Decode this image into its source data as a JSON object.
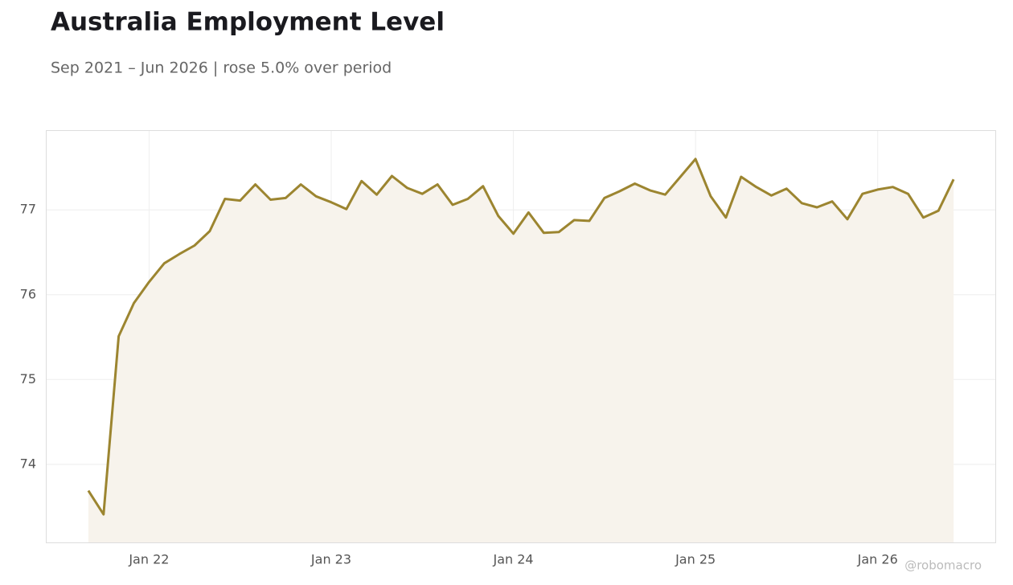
{
  "chart_data": {
    "type": "line",
    "title": "Australia Employment Level",
    "subtitle": "Sep 2021 – Jun 2026 | rose 5.0% over period",
    "watermark": "@robomacro",
    "x": [
      "2021-09",
      "2021-10",
      "2021-11",
      "2021-12",
      "2022-01",
      "2022-02",
      "2022-03",
      "2022-04",
      "2022-05",
      "2022-06",
      "2022-07",
      "2022-08",
      "2022-09",
      "2022-10",
      "2022-11",
      "2022-12",
      "2023-01",
      "2023-02",
      "2023-03",
      "2023-04",
      "2023-05",
      "2023-06",
      "2023-07",
      "2023-08",
      "2023-09",
      "2023-10",
      "2023-11",
      "2023-12",
      "2024-01",
      "2024-02",
      "2024-03",
      "2024-04",
      "2024-05",
      "2024-06",
      "2024-07",
      "2024-08",
      "2024-09",
      "2024-10",
      "2024-11",
      "2024-12",
      "2025-01",
      "2025-02",
      "2025-03",
      "2025-04",
      "2025-05",
      "2025-06",
      "2025-07",
      "2025-08",
      "2025-09",
      "2025-10",
      "2025-11",
      "2025-12",
      "2026-01",
      "2026-02",
      "2026-03",
      "2026-04",
      "2026-05",
      "2026-06"
    ],
    "series": [
      {
        "color": "#9c8530",
        "values": [
          73.69,
          73.41,
          75.51,
          75.9,
          76.15,
          76.37,
          76.48,
          76.58,
          76.75,
          77.13,
          77.11,
          77.3,
          77.12,
          77.14,
          77.3,
          77.16,
          77.09,
          77.01,
          77.34,
          77.18,
          77.4,
          77.26,
          77.19,
          77.3,
          77.06,
          77.13,
          77.28,
          76.93,
          76.72,
          76.97,
          76.73,
          76.74,
          76.88,
          76.87,
          77.14,
          77.22,
          77.31,
          77.23,
          77.18,
          77.39,
          77.6,
          77.16,
          76.91,
          77.39,
          77.27,
          77.17,
          77.25,
          77.08,
          77.03,
          77.1,
          76.89,
          77.19,
          77.24,
          77.27,
          77.19,
          76.91,
          76.99,
          77.36
        ]
      }
    ],
    "ylim": [
      73.07,
      77.94
    ],
    "yticks": [
      74,
      75,
      76,
      77
    ],
    "xticks": [
      {
        "value": "2022-01",
        "label": "Jan 22"
      },
      {
        "value": "2023-01",
        "label": "Jan 23"
      },
      {
        "value": "2024-01",
        "label": "Jan 24"
      },
      {
        "value": "2025-01",
        "label": "Jan 25"
      },
      {
        "value": "2026-01",
        "label": "Jan 26"
      }
    ],
    "grid": true,
    "area_fill": "#f7f3ec"
  }
}
